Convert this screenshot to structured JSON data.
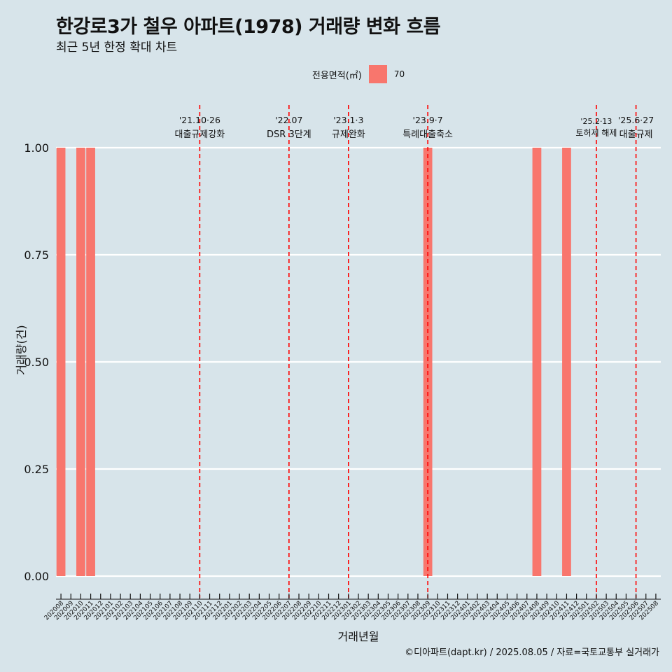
{
  "title": "한강로3가 철우 아파트(1978) 거래량 변화 흐름",
  "subtitle": "최근 5년 한정 확대 차트",
  "caption": "©디아파트(dapt.kr) / 2025.08.05 / 자료=국토교통부 실거래가",
  "legend": {
    "title": "전용면적(㎡)",
    "label": "70",
    "color": "#f8766d"
  },
  "colors": {
    "background": "#d7e4ea",
    "bar": "#f8766d",
    "event_line": "#ff0000",
    "grid": "#ffffff"
  },
  "chart_data": {
    "type": "bar",
    "title": "한강로3가 철우 아파트(1978) 거래량 변화 흐름",
    "subtitle": "최근 5년 한정 확대 차트",
    "xlabel": "거래년월",
    "ylabel": "거래량(건)",
    "ylim": [
      0,
      1
    ],
    "yticks": [
      "0.00",
      "0.25",
      "0.50",
      "0.75",
      "1.00"
    ],
    "grid": true,
    "legend_position": "top",
    "categories": [
      "202008",
      "202009",
      "202010",
      "202011",
      "202012",
      "202101",
      "202102",
      "202103",
      "202104",
      "202105",
      "202106",
      "202107",
      "202108",
      "202109",
      "202110",
      "202111",
      "202112",
      "202201",
      "202202",
      "202203",
      "202204",
      "202205",
      "202206",
      "202207",
      "202208",
      "202209",
      "202210",
      "202211",
      "202212",
      "202301",
      "202302",
      "202303",
      "202304",
      "202305",
      "202306",
      "202307",
      "202308",
      "202309",
      "202310",
      "202311",
      "202312",
      "202401",
      "202402",
      "202403",
      "202404",
      "202405",
      "202406",
      "202407",
      "202408",
      "202409",
      "202410",
      "202411",
      "202412",
      "202501",
      "202502",
      "202503",
      "202504",
      "202505",
      "202506",
      "202507",
      "202508"
    ],
    "series": [
      {
        "name": "70",
        "values": [
          1,
          0,
          1,
          1,
          0,
          0,
          0,
          0,
          0,
          0,
          0,
          0,
          0,
          0,
          0,
          0,
          0,
          0,
          0,
          0,
          0,
          0,
          0,
          0,
          0,
          0,
          0,
          0,
          0,
          0,
          0,
          0,
          0,
          0,
          0,
          0,
          0,
          1,
          0,
          0,
          0,
          0,
          0,
          0,
          0,
          0,
          0,
          0,
          1,
          0,
          0,
          1,
          0,
          0,
          0,
          0,
          0,
          0,
          0,
          0,
          0
        ]
      }
    ],
    "annotations": [
      {
        "x": 14.5,
        "date": "'21.10·26",
        "label": "대출규제강화"
      },
      {
        "x": 23.5,
        "date": "'22.07",
        "label": "DSR 3단계"
      },
      {
        "x": 29.5,
        "date": "'23.1·3",
        "label": "규제완화"
      },
      {
        "x": 37.5,
        "date": "'23.9·7",
        "label": "특례대출축소"
      },
      {
        "x": 54.5,
        "date": "'25.2·13",
        "label": "토허제 해제"
      },
      {
        "x": 58.5,
        "date": "'25.6·27",
        "label": "대출규제"
      }
    ]
  }
}
